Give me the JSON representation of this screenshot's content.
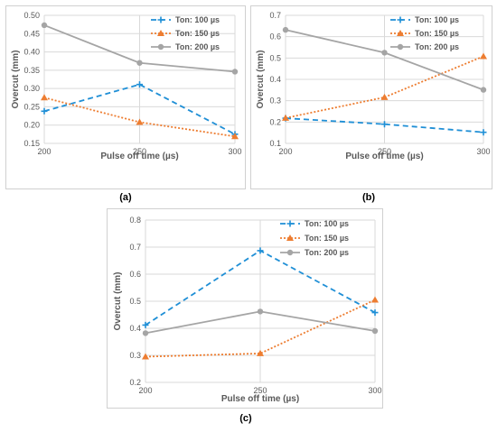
{
  "chart_data": [
    {
      "type": "line",
      "panel_label": "(a)",
      "xlabel": "Pulse off time (µs)",
      "ylabel": "Overcut (mm)",
      "categories": [
        "200",
        "250",
        "300"
      ],
      "x": [
        200,
        250,
        300
      ],
      "ylim": [
        0.15,
        0.5
      ],
      "yticks": [
        "0.15",
        "0.20",
        "0.25",
        "0.30",
        "0.35",
        "0.40",
        "0.45",
        "0.50"
      ],
      "grid": true,
      "legend_position": "top-right",
      "series": [
        {
          "name": "Ton: 100 µs",
          "values": [
            0.238,
            0.311,
            0.175
          ],
          "color": "#1f8fd6",
          "marker": "plus",
          "dash": "dashed"
        },
        {
          "name": "Ton: 150 µs",
          "values": [
            0.275,
            0.208,
            0.169
          ],
          "color": "#ed7d31",
          "marker": "triangle",
          "dash": "dotted"
        },
        {
          "name": "Ton: 200 µs",
          "values": [
            0.473,
            0.37,
            0.346
          ],
          "color": "#a5a5a5",
          "marker": "circle",
          "dash": "solid"
        }
      ]
    },
    {
      "type": "line",
      "panel_label": "(b)",
      "xlabel": "Pulse off time (µs)",
      "ylabel": "Overcut (mm)",
      "categories": [
        "200",
        "250",
        "300"
      ],
      "x": [
        200,
        250,
        300
      ],
      "ylim": [
        0.1,
        0.7
      ],
      "yticks": [
        "0.1",
        "0.2",
        "0.3",
        "0.4",
        "0.5",
        "0.6",
        "0.7"
      ],
      "grid": true,
      "legend_position": "top-right",
      "series": [
        {
          "name": "Ton: 100 µs",
          "values": [
            0.218,
            0.19,
            0.152
          ],
          "color": "#1f8fd6",
          "marker": "plus",
          "dash": "dashed"
        },
        {
          "name": "Ton: 150 µs",
          "values": [
            0.219,
            0.316,
            0.508
          ],
          "color": "#ed7d31",
          "marker": "triangle",
          "dash": "dotted"
        },
        {
          "name": "Ton: 200 µs",
          "values": [
            0.632,
            0.525,
            0.351
          ],
          "color": "#a5a5a5",
          "marker": "circle",
          "dash": "solid"
        }
      ]
    },
    {
      "type": "line",
      "panel_label": "(c)",
      "xlabel": "Pulse off time (µs)",
      "ylabel": "Overcut (mm)",
      "categories": [
        "200",
        "250",
        "300"
      ],
      "x": [
        200,
        250,
        300
      ],
      "ylim": [
        0.2,
        0.8
      ],
      "yticks": [
        "0.2",
        "0.3",
        "0.4",
        "0.5",
        "0.6",
        "0.7",
        "0.8"
      ],
      "grid": true,
      "legend_position": "top-right",
      "series": [
        {
          "name": "Ton: 100 µs",
          "values": [
            0.412,
            0.687,
            0.458
          ],
          "color": "#1f8fd6",
          "marker": "plus",
          "dash": "dashed"
        },
        {
          "name": "Ton: 150 µs",
          "values": [
            0.295,
            0.307,
            0.505
          ],
          "color": "#ed7d31",
          "marker": "triangle",
          "dash": "dotted"
        },
        {
          "name": "Ton: 200 µs",
          "values": [
            0.382,
            0.462,
            0.39
          ],
          "color": "#a5a5a5",
          "marker": "circle",
          "dash": "solid"
        }
      ]
    }
  ]
}
